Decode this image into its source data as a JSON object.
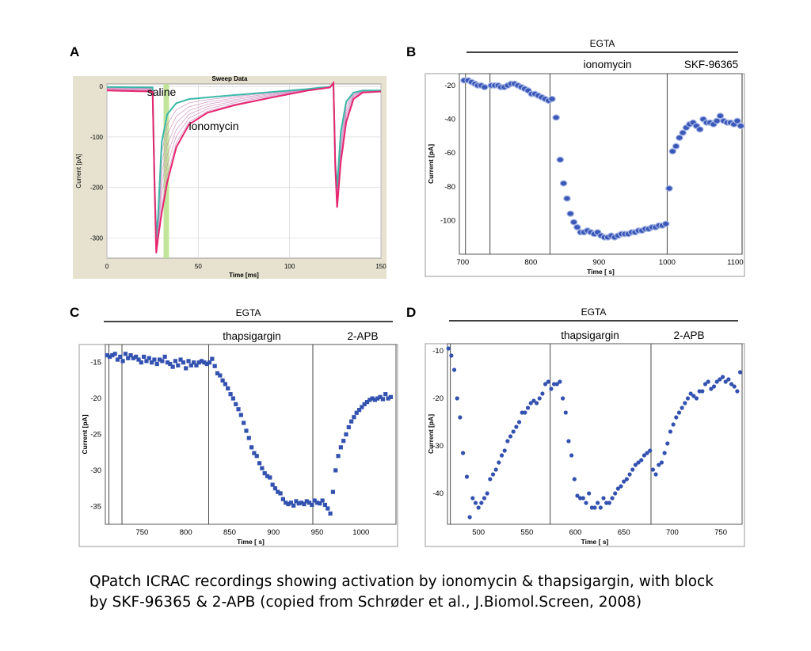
{
  "caption": {
    "line1": "QPatch ICRAC recordings showing activation by ionomycin & thapsigargin, with block",
    "line2": "by SKF-96365 & 2-APB (copied from Schrøder et al., J.Biomol.Screen, 2008)"
  },
  "chart_data": [
    {
      "panel": "A",
      "type": "line",
      "title": "Sweep Data",
      "xlabel": "Time [ms]",
      "ylabel": "Current [pA]",
      "xlim": [
        0,
        150
      ],
      "ylim": [
        -340,
        5
      ],
      "xticks": [
        0,
        50,
        100,
        150
      ],
      "yticks": [
        0,
        -100,
        -200,
        -300
      ],
      "annotations": [
        "saline",
        "ionomycin"
      ],
      "highlight_band_x": [
        31,
        34
      ],
      "colors": {
        "saline_trace": "#3bb8a8",
        "ionomycin_trace": "#e8256f",
        "intermediate": "#c77ab8",
        "band": "#b8e08a"
      },
      "series": [
        {
          "name": "saline",
          "points": [
            [
              0,
              -1
            ],
            [
              25,
              -2
            ],
            [
              26,
              -180
            ],
            [
              27,
              -300
            ],
            [
              28,
              -255
            ],
            [
              30,
              -110
            ],
            [
              33,
              -55
            ],
            [
              38,
              -33
            ],
            [
              45,
              -25
            ],
            [
              60,
              -20
            ],
            [
              80,
              -14
            ],
            [
              100,
              -8
            ],
            [
              110,
              -5
            ],
            [
              115,
              -3
            ],
            [
              122,
              -1
            ],
            [
              124,
              4
            ],
            [
              125,
              -150
            ],
            [
              126,
              -200
            ],
            [
              128,
              -90
            ],
            [
              131,
              -30
            ],
            [
              135,
              -12
            ],
            [
              140,
              -8
            ],
            [
              150,
              -8
            ]
          ]
        },
        {
          "name": "ionomycin",
          "points": [
            [
              0,
              -8
            ],
            [
              25,
              -10
            ],
            [
              26,
              -185
            ],
            [
              27,
              -330
            ],
            [
              28,
              -300
            ],
            [
              30,
              -250
            ],
            [
              33,
              -190
            ],
            [
              38,
              -120
            ],
            [
              45,
              -75
            ],
            [
              55,
              -52
            ],
            [
              70,
              -37
            ],
            [
              90,
              -22
            ],
            [
              110,
              -8
            ],
            [
              122,
              -2
            ],
            [
              124,
              7
            ],
            [
              125,
              -160
            ],
            [
              126,
              -240
            ],
            [
              128,
              -150
            ],
            [
              131,
              -70
            ],
            [
              135,
              -25
            ],
            [
              140,
              -12
            ],
            [
              150,
              -10
            ]
          ]
        }
      ]
    },
    {
      "panel": "B",
      "type": "scatter",
      "xlabel": "Time [ s]",
      "ylabel": "Current [pA]",
      "xlim": [
        695,
        1110
      ],
      "ylim": [
        -120,
        -13
      ],
      "xticks": [
        700,
        800,
        900,
        1000,
        1100
      ],
      "yticks": [
        -20,
        -40,
        -60,
        -80,
        -100
      ],
      "header_bar_label": "EGTA",
      "treatments": [
        "ionomycin",
        "SKF-96365"
      ],
      "vlines": [
        704,
        740,
        828,
        1000,
        1110
      ],
      "x": [
        702,
        708,
        713,
        718,
        722,
        727,
        732,
        742,
        747,
        752,
        756,
        761,
        766,
        771,
        776,
        781,
        786,
        791,
        796,
        801,
        806,
        811,
        816,
        821,
        826,
        831,
        837,
        843,
        848,
        853,
        858,
        863,
        868,
        873,
        878,
        883,
        888,
        893,
        898,
        903,
        908,
        913,
        918,
        923,
        928,
        933,
        938,
        943,
        948,
        953,
        958,
        963,
        968,
        973,
        978,
        983,
        988,
        993,
        998,
        1003,
        1008,
        1013,
        1018,
        1023,
        1028,
        1033,
        1038,
        1043,
        1048,
        1053,
        1058,
        1063,
        1068,
        1073,
        1078,
        1083,
        1088,
        1093,
        1098,
        1103,
        1108
      ],
      "y": [
        -17,
        -17,
        -18,
        -19,
        -20,
        -20,
        -21,
        -20,
        -20,
        -20,
        -21,
        -21,
        -20,
        -19,
        -19,
        -20,
        -21,
        -22,
        -23,
        -25,
        -25,
        -26,
        -27,
        -28,
        -29,
        -28,
        -39,
        -64,
        -78,
        -87,
        -96,
        -101,
        -104,
        -107,
        -107,
        -106,
        -107,
        -108,
        -107,
        -109,
        -110,
        -110,
        -109,
        -110,
        -109,
        -108,
        -108,
        -108,
        -107,
        -107,
        -106,
        -106,
        -105,
        -105,
        -104,
        -104,
        -103,
        -103,
        -102,
        -81,
        -59,
        -56,
        -51,
        -48,
        -45,
        -43,
        -42,
        -44,
        -46,
        -40,
        -42,
        -42,
        -43,
        -41,
        -38,
        -41,
        -42,
        -42,
        -43,
        -41,
        -44
      ]
    },
    {
      "panel": "C",
      "type": "scatter",
      "xlabel": "Time [ s]",
      "ylabel": "Current [pA]",
      "xlim": [
        708,
        1040
      ],
      "ylim": [
        -37.5,
        -12.5
      ],
      "xticks": [
        750,
        800,
        850,
        900,
        950,
        1000
      ],
      "yticks": [
        -15,
        -20,
        -25,
        -30,
        -35
      ],
      "header_bar_label": "EGTA",
      "treatments": [
        "thapsigargin",
        "2-APB"
      ],
      "vlines": [
        712,
        727,
        826,
        945
      ],
      "x": [
        710,
        713,
        716,
        719,
        722,
        725,
        728,
        731,
        734,
        737,
        740,
        743,
        746,
        749,
        752,
        755,
        758,
        761,
        764,
        767,
        770,
        773,
        776,
        779,
        782,
        785,
        788,
        791,
        794,
        797,
        800,
        803,
        806,
        809,
        812,
        815,
        818,
        821,
        824,
        827,
        830,
        833,
        836,
        839,
        842,
        845,
        848,
        851,
        854,
        857,
        860,
        863,
        866,
        869,
        872,
        875,
        878,
        881,
        884,
        887,
        890,
        893,
        896,
        899,
        902,
        905,
        908,
        911,
        914,
        917,
        920,
        923,
        926,
        929,
        932,
        935,
        938,
        941,
        944,
        947,
        950,
        953,
        956,
        959,
        962,
        965,
        968,
        971,
        974,
        977,
        980,
        983,
        986,
        989,
        992,
        995,
        998,
        1001,
        1004,
        1007,
        1010,
        1013,
        1016,
        1019,
        1022,
        1025,
        1028,
        1031,
        1034
      ],
      "y": [
        -14,
        -14.2,
        -14,
        -13.8,
        -14.6,
        -14.2,
        -14.8,
        -13.8,
        -14.4,
        -14,
        -14.4,
        -14.2,
        -14.6,
        -15,
        -14.2,
        -14.8,
        -14.4,
        -15,
        -14.6,
        -15.2,
        -14.6,
        -14.8,
        -14.2,
        -15,
        -15.2,
        -15.6,
        -14.8,
        -15.4,
        -14.6,
        -15,
        -15.8,
        -14.8,
        -15.4,
        -15,
        -15.4,
        -15,
        -14.8,
        -15,
        -15.2,
        -15,
        -14.5,
        -15.5,
        -16.5,
        -16.8,
        -17.5,
        -18,
        -18.6,
        -19.4,
        -20,
        -20.8,
        -21.5,
        -22.3,
        -23.4,
        -24.5,
        -25.5,
        -26.8,
        -27.6,
        -28,
        -29,
        -29.7,
        -30.4,
        -30.8,
        -31,
        -32,
        -32.5,
        -33,
        -33.2,
        -34,
        -34.5,
        -34.7,
        -34.5,
        -34.9,
        -34.3,
        -34.6,
        -34.5,
        -34.7,
        -34.3,
        -34.5,
        -34.8,
        -34.2,
        -34.5,
        -34.6,
        -34.2,
        -34.8,
        -35.3,
        -36,
        -33,
        -30,
        -28,
        -26.8,
        -25.9,
        -25,
        -24,
        -23.2,
        -22.6,
        -22,
        -21.6,
        -21.2,
        -20.8,
        -20.5,
        -20.2,
        -20,
        -20.2,
        -20,
        -19.8,
        -20.1,
        -19.4,
        -20,
        -19.8
      ]
    },
    {
      "panel": "D",
      "type": "scatter",
      "xlabel": "Time [ s]",
      "ylabel": "Current [pA]",
      "xlim": [
        468,
        772
      ],
      "ylim": [
        -46.5,
        -8.5
      ],
      "xticks": [
        500,
        550,
        600,
        650,
        700,
        750
      ],
      "yticks": [
        -10,
        -20,
        -30,
        -40
      ],
      "header_bar_label": "EGTA",
      "treatments": [
        "thapsigargin",
        "2-APB"
      ],
      "vlines": [
        471,
        574,
        678
      ],
      "x": [
        469,
        472,
        475,
        478,
        481,
        484,
        488,
        491,
        494,
        497,
        500,
        503,
        506,
        509,
        512,
        515,
        518,
        521,
        524,
        527,
        530,
        533,
        536,
        539,
        542,
        545,
        548,
        551,
        554,
        557,
        560,
        563,
        566,
        569,
        572,
        575,
        578,
        581,
        584,
        587,
        590,
        593,
        596,
        599,
        602,
        605,
        608,
        611,
        614,
        617,
        620,
        623,
        626,
        629,
        632,
        635,
        638,
        641,
        644,
        647,
        650,
        653,
        656,
        659,
        662,
        665,
        668,
        671,
        674,
        677,
        680,
        683,
        686,
        689,
        692,
        695,
        698,
        701,
        704,
        707,
        710,
        713,
        716,
        719,
        722,
        725,
        728,
        731,
        734,
        737,
        740,
        743,
        746,
        749,
        752,
        755,
        758,
        761,
        764,
        767,
        770
      ],
      "y": [
        -9.5,
        -11,
        -14,
        -20,
        -24,
        -31.5,
        -36.5,
        -45,
        -41,
        -42,
        -43,
        -42,
        -41,
        -40,
        -37,
        -36,
        -35,
        -33.5,
        -32,
        -31,
        -29,
        -28,
        -27,
        -26,
        -25,
        -23,
        -23,
        -22,
        -21,
        -20.5,
        -21,
        -20,
        -19,
        -17,
        -16.5,
        -18,
        -17,
        -17,
        -16.5,
        -20,
        -23,
        -29,
        -32,
        -37,
        -40.5,
        -41,
        -41,
        -42,
        -40,
        -43,
        -43,
        -42,
        -43,
        -41,
        -42,
        -42,
        -41,
        -40,
        -39,
        -38.5,
        -37.5,
        -37,
        -36,
        -35,
        -34,
        -33.5,
        -33,
        -32,
        -31.5,
        -31,
        -35,
        -36,
        -34,
        -33.5,
        -31.5,
        -29.5,
        -27,
        -25.5,
        -24,
        -23,
        -22,
        -21,
        -20,
        -19,
        -19.5,
        -20,
        -18.5,
        -18.5,
        -17,
        -16.5,
        -18,
        -17.5,
        -16.5,
        -16,
        -15.5,
        -16.5,
        -16,
        -17,
        -17.5,
        -18.5,
        -14.5
      ]
    }
  ]
}
